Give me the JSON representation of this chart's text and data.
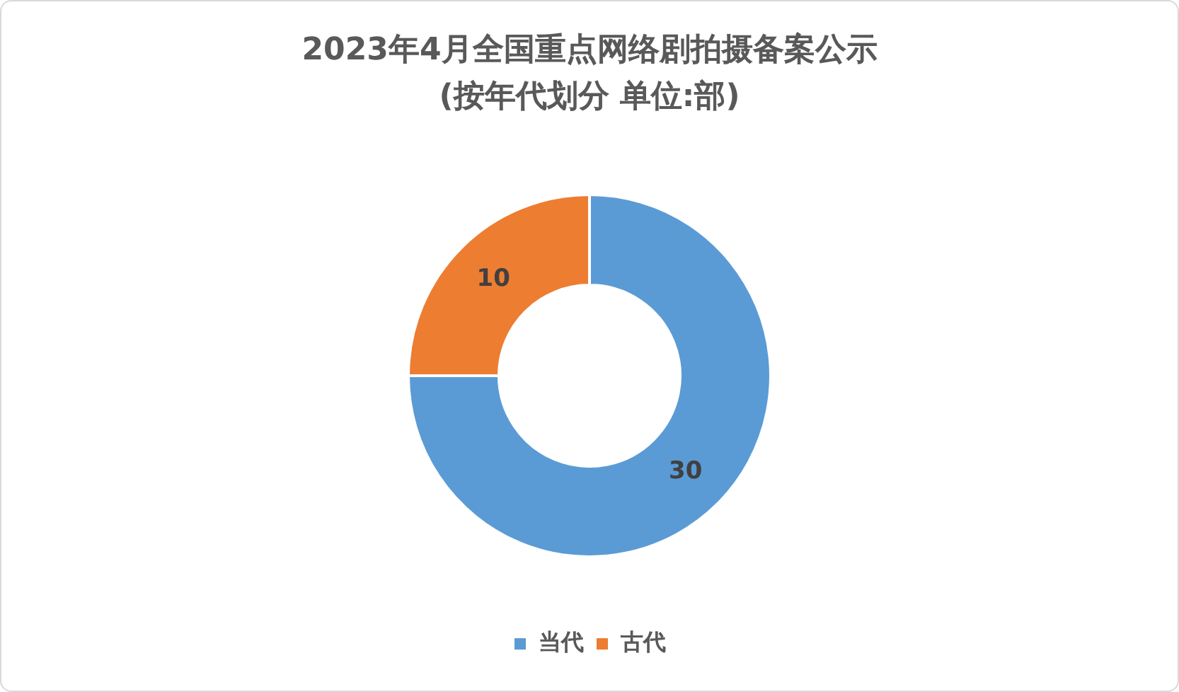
{
  "chart_data": {
    "type": "donut",
    "title": "2023年4月全国重点网络剧拍摄备案公示",
    "subtitle": "(按年代划分 单位:部)",
    "categories": [
      "当代",
      "古代"
    ],
    "values": [
      30,
      10
    ],
    "colors": [
      "#5b9bd5",
      "#ed7d31"
    ],
    "legend": "bottom",
    "data_labels": true
  }
}
